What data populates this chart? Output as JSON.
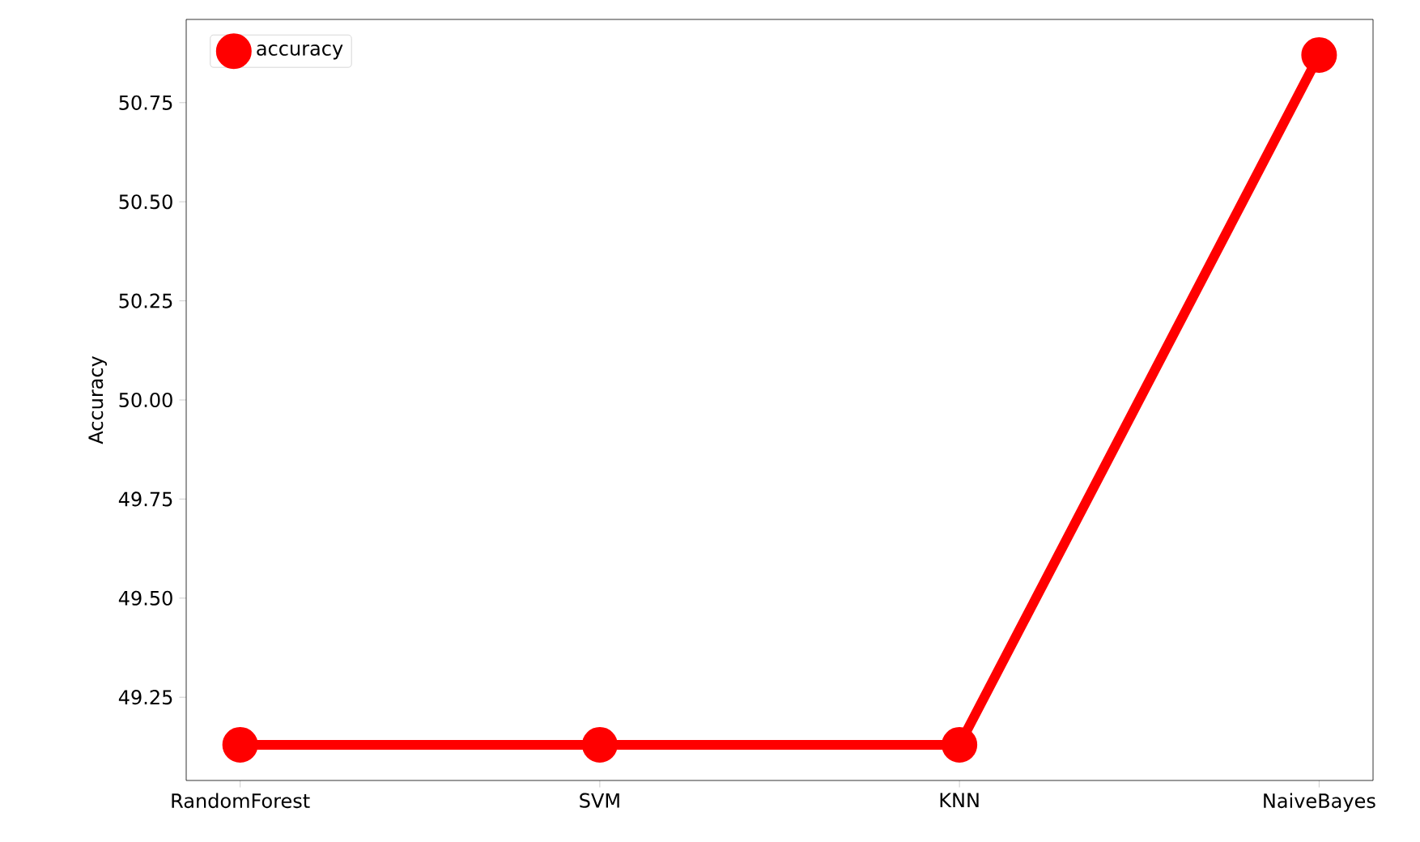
{
  "chart_data": {
    "type": "line",
    "ylabel": "Accuracy",
    "categories": [
      "RandomForest",
      "SVM",
      "KNN",
      "NaiveBayes"
    ],
    "series": [
      {
        "name": "accuracy",
        "color": "#ff0000",
        "values": [
          49.13,
          49.13,
          49.13,
          50.87
        ]
      }
    ],
    "ylim": [
      49.04,
      50.96
    ],
    "yticks": [
      {
        "value": 49.25,
        "label": "49.25"
      },
      {
        "value": 49.5,
        "label": "49.50"
      },
      {
        "value": 49.75,
        "label": "49.75"
      },
      {
        "value": 50.0,
        "label": "50.00"
      },
      {
        "value": 50.25,
        "label": "50.25"
      },
      {
        "value": 50.5,
        "label": "50.50"
      },
      {
        "value": 50.75,
        "label": "50.75"
      }
    ],
    "legend": "top left",
    "marker": "circle",
    "line_style": "solid",
    "grid": false
  }
}
